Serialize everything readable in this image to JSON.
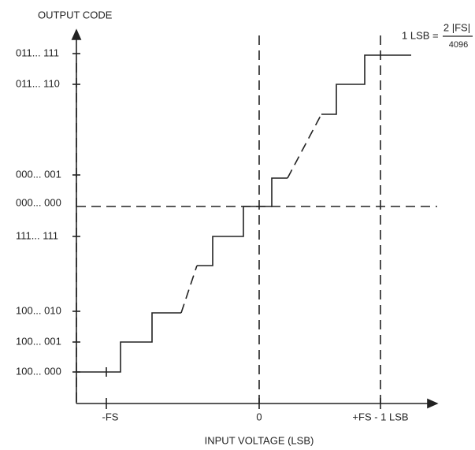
{
  "y_axis_title": "OUTPUT CODE",
  "y_labels": [
    "011... 111",
    "011... 110",
    "000... 001",
    "000... 000",
    "111... 111",
    "100... 010",
    "100... 001",
    "100... 000"
  ],
  "x_labels": [
    "-FS",
    "0",
    "+FS - 1 LSB"
  ],
  "x_axis_title": "INPUT VOLTAGE (LSB)",
  "formula": {
    "lhs": "1 LSB =",
    "numerator": "2 |FS|",
    "denominator": "4096"
  }
}
